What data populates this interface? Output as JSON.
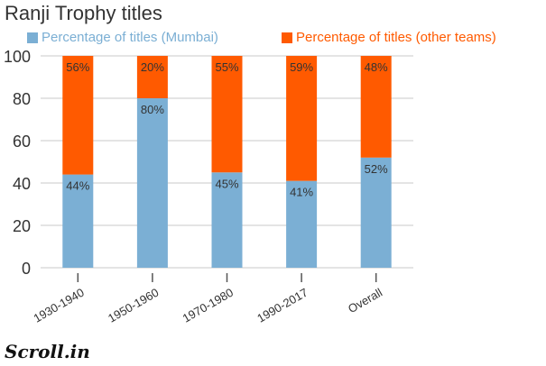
{
  "chart_data": {
    "type": "bar",
    "stacked": true,
    "title": "Ranji Trophy titles",
    "categories": [
      "1930-1940",
      "1950-1960",
      "1970-1980",
      "1990-2017",
      "Overall"
    ],
    "series": [
      {
        "name": "Percentage of titles (Mumbai)",
        "values": [
          44,
          80,
          45,
          41,
          52
        ],
        "labels": [
          "44%",
          "80%",
          "45%",
          "41%",
          "52%"
        ],
        "color": "#7BAFD4"
      },
      {
        "name": "Percentage of titles (other teams)",
        "values": [
          56,
          20,
          55,
          59,
          48
        ],
        "labels": [
          "56%",
          "20%",
          "55%",
          "59%",
          "48%"
        ],
        "color": "#FF5A00"
      }
    ],
    "yticks": [
      "0",
      "20",
      "40",
      "60",
      "80",
      "100"
    ],
    "ylim": [
      0,
      100
    ],
    "grid": true,
    "legend": "top"
  },
  "logo": "Scroll.in",
  "colors": {
    "mumbai": "#7BAFD4",
    "other": "#FF5A00",
    "grid": "#c8c8c8",
    "text": "#333333"
  }
}
